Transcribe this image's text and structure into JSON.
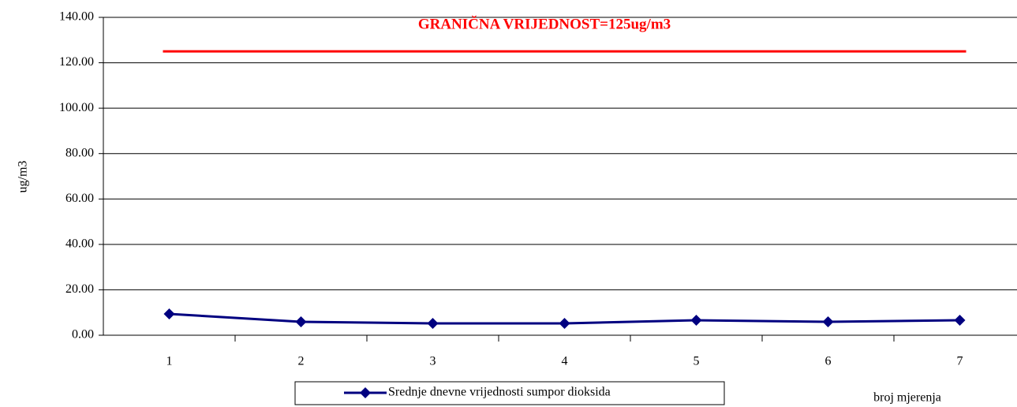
{
  "chart_data": {
    "type": "line",
    "categories": [
      "1",
      "2",
      "3",
      "4",
      "5",
      "6",
      "7"
    ],
    "series": [
      {
        "name": "Srednje dnevne vrijednosti sumpor dioksida",
        "color": "#000080",
        "values": [
          9.4,
          5.9,
          5.2,
          5.2,
          6.6,
          5.9,
          6.6
        ]
      }
    ],
    "ylim": [
      0,
      140
    ],
    "yticks": [
      {
        "value": 0,
        "label": "0.00"
      },
      {
        "value": 20,
        "label": "20.00"
      },
      {
        "value": 40,
        "label": "40.00"
      },
      {
        "value": 60,
        "label": "60.00"
      },
      {
        "value": 80,
        "label": "80.00"
      },
      {
        "value": 100,
        "label": "100.00"
      },
      {
        "value": 120,
        "label": "120.00"
      },
      {
        "value": 140,
        "label": "140.00"
      }
    ],
    "y_label": "ug/m3",
    "x_label": "broj mjerenja",
    "limit": {
      "value": 125,
      "label": "GRANIČNA VRIJEDNOST=125ug/m3",
      "color": "#ff0000"
    },
    "grid": true,
    "legend": "bottom"
  }
}
